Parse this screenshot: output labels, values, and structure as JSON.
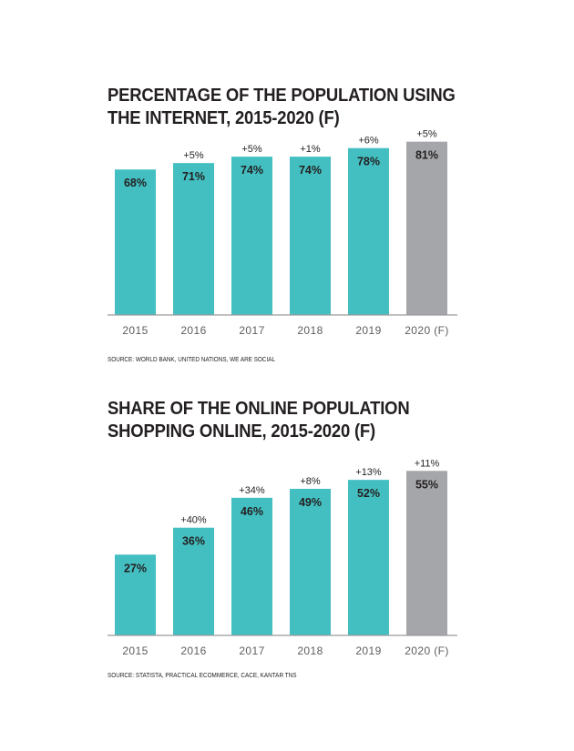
{
  "colors": {
    "bar": "#43bfc1",
    "forecast": "#a5a6a9",
    "axis": "#9a9a9a",
    "text": "#231f20"
  },
  "charts": [
    {
      "title_line1": "PERCENTAGE OF THE POPULATION USING",
      "title_line2": "THE INTERNET, 2015-2020 (F)",
      "source": "SOURCE: WORLD BANK, UNITED NATIONS, WE ARE SOCIAL"
    },
    {
      "title_line1": "SHARE OF THE ONLINE POPULATION",
      "title_line2": "SHOPPING ONLINE, 2015-2020 (F)",
      "source": "SOURCE: STATISTA, PRACTICAL ECOMMERCE, CACE, KANTAR TNS"
    }
  ],
  "chart_data": [
    {
      "type": "bar",
      "title": "PERCENTAGE OF THE POPULATION USING THE INTERNET, 2015-2020 (F)",
      "categories": [
        "2015",
        "2016",
        "2017",
        "2018",
        "2019",
        "2020 (F)"
      ],
      "values": [
        68,
        71,
        74,
        74,
        78,
        81
      ],
      "value_labels": [
        "68%",
        "71%",
        "74%",
        "74%",
        "78%",
        "81%"
      ],
      "growth_labels": [
        "",
        "+5%",
        "+5%",
        "+1%",
        "+6%",
        "+5%"
      ],
      "forecast_index": 5,
      "ylim": [
        0,
        100
      ],
      "grid": false
    },
    {
      "type": "bar",
      "title": "SHARE OF THE ONLINE POPULATION SHOPPING ONLINE, 2015-2020 (F)",
      "categories": [
        "2015",
        "2016",
        "2017",
        "2018",
        "2019",
        "2020 (F)"
      ],
      "values": [
        27,
        36,
        46,
        49,
        52,
        55
      ],
      "value_labels": [
        "27%",
        "36%",
        "46%",
        "49%",
        "52%",
        "55%"
      ],
      "growth_labels": [
        "",
        "+40%",
        "+34%",
        "+8%",
        "+13%",
        "+11%"
      ],
      "forecast_index": 5,
      "ylim": [
        0,
        60
      ],
      "grid": false
    }
  ]
}
